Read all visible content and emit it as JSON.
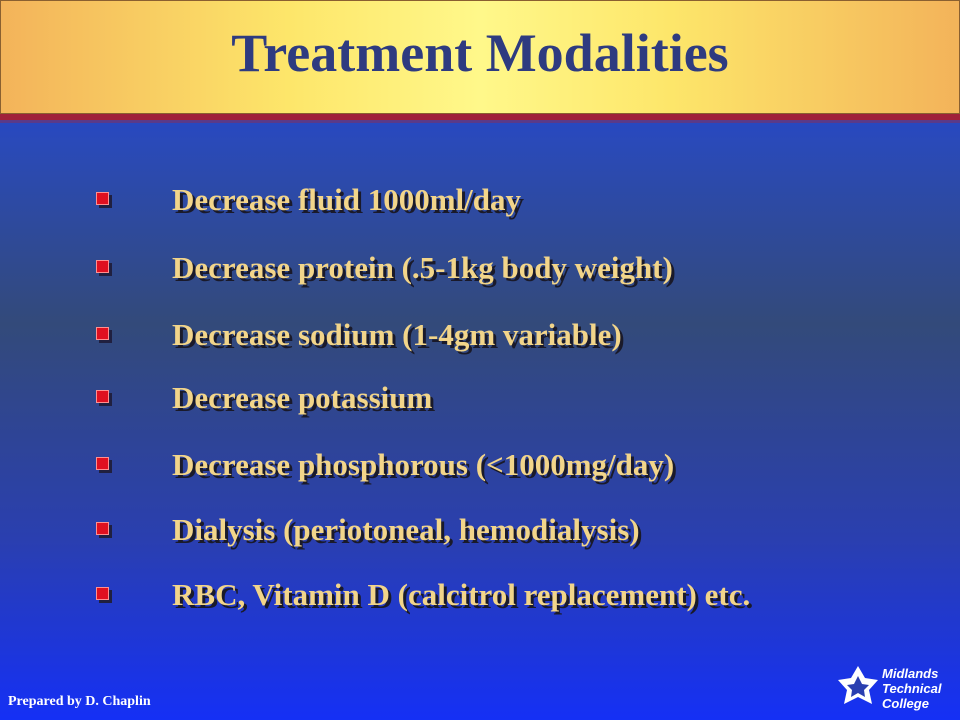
{
  "slide": {
    "title": "Treatment Modalities",
    "bullets": [
      "Decrease fluid 1000ml/day",
      "Decrease protein (.5-1kg body weight)",
      "Decrease sodium (1-4gm variable)",
      "Decrease potassium",
      "Decrease phosphorous (<1000mg/day)",
      "Dialysis (periotoneal, hemodialysis)",
      "RBC, Vitamin D (calcitrol replacement) etc."
    ],
    "footer": "Prepared by  D. Chaplin",
    "logo": [
      "Midlands",
      "Technical",
      "College"
    ]
  }
}
